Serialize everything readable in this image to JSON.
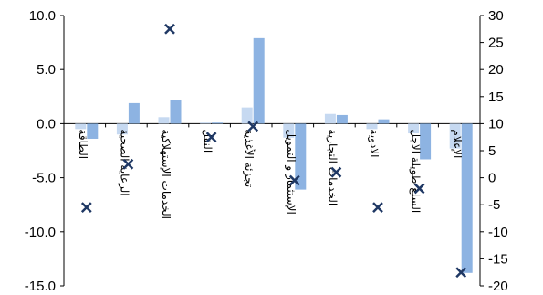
{
  "chart_data": {
    "type": "bar",
    "categories": [
      "الطاقة",
      "الرعاية الصحية",
      "الخدمات الإستهلاكية",
      "النقل",
      "تجزئة الأغذية",
      "الإستثمار و التمويل",
      "الخدمات التجارية",
      "الادوية",
      "السلع طويلة الاجل",
      "الإعلام"
    ],
    "series": [
      {
        "axis": "left",
        "color": "#c6d9f1",
        "values": [
          -0.5,
          -1.0,
          0.6,
          0.1,
          1.5,
          -1.3,
          0.9,
          -0.5,
          -0.9,
          -2.3
        ]
      },
      {
        "axis": "left",
        "color": "#8db3e2",
        "values": [
          -1.4,
          1.9,
          2.2,
          0.1,
          7.9,
          -6.1,
          0.8,
          0.4,
          -3.3,
          -13.8
        ]
      },
      {
        "axis": "right",
        "color": "#1f3864",
        "marker": "x",
        "values": [
          -5.5,
          2.5,
          27.5,
          7.5,
          9.5,
          -0.5,
          1.0,
          -5.5,
          -2.0,
          -17.5
        ]
      }
    ],
    "ylim_left": [
      -15,
      10
    ],
    "yticks_left": [
      "10.0",
      "5.0",
      "0.0",
      "-5.0",
      "-10.0",
      "-15.0"
    ],
    "ylim_right": [
      -20,
      30
    ],
    "yticks_right": [
      "30",
      "25",
      "20",
      "15",
      "10",
      "5",
      "0",
      "-5",
      "-10",
      "-15",
      "-20"
    ]
  }
}
